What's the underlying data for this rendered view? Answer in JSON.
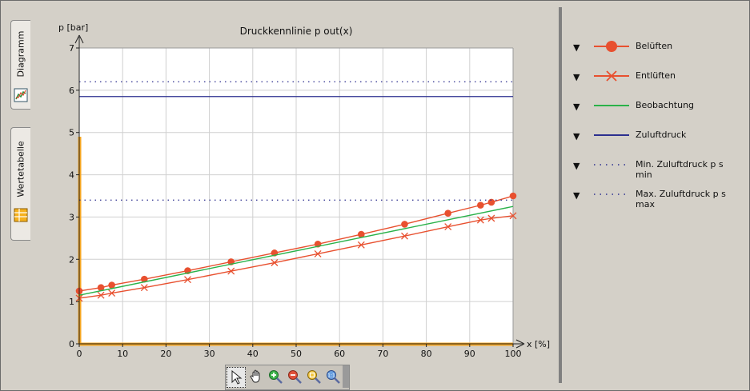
{
  "tabs": [
    {
      "label": "Diagramm",
      "icon": "chart-icon"
    },
    {
      "label": "Wertetabelle",
      "icon": "table-icon"
    }
  ],
  "legend": [
    {
      "label": "Belüften",
      "style": "line-dot",
      "color": "#e8502f"
    },
    {
      "label": "Entlüften",
      "style": "line-x",
      "color": "#e8502f"
    },
    {
      "label": "Beobachtung",
      "style": "line",
      "color": "#2ab24a"
    },
    {
      "label": "Zuluftdruck",
      "style": "line",
      "color": "#2c2f8f"
    },
    {
      "label": "Min. Zuluftdruck p s min",
      "style": "dotted",
      "color": "#2c2f8f"
    },
    {
      "label": "Max. Zuluftdruck p s max",
      "style": "dotted",
      "color": "#2c2f8f"
    }
  ],
  "toolbar": [
    {
      "name": "select-tool",
      "icon": "cursor-icon"
    },
    {
      "name": "pan-tool",
      "icon": "hand-icon"
    },
    {
      "name": "zoom-in-tool",
      "icon": "zoom-in-icon"
    },
    {
      "name": "zoom-out-tool",
      "icon": "zoom-out-icon"
    },
    {
      "name": "zoom-fit-tool",
      "icon": "zoom-fit-icon"
    },
    {
      "name": "zoom-1to1-tool",
      "icon": "zoom-1to1-icon"
    }
  ],
  "chart_data": {
    "type": "line",
    "title": "Druckkennlinie p out(x)",
    "xlabel": "x  [%]",
    "ylabel": "p  [bar]",
    "xlim": [
      0,
      100
    ],
    "ylim": [
      0,
      7
    ],
    "xticks": [
      0,
      10,
      20,
      30,
      40,
      50,
      60,
      70,
      80,
      90,
      100
    ],
    "yticks": [
      0,
      1,
      2,
      3,
      4,
      5,
      6,
      7
    ],
    "grid": true,
    "legend_position": "right",
    "series": [
      {
        "name": "Belüften",
        "kind": "line-dot",
        "color": "#e8502f",
        "x": [
          0,
          5,
          7.5,
          15,
          25,
          35,
          45,
          55,
          65,
          75,
          85,
          92.5,
          95,
          100
        ],
        "y": [
          1.25,
          1.33,
          1.39,
          1.53,
          1.73,
          1.94,
          2.15,
          2.36,
          2.59,
          2.83,
          3.09,
          3.28,
          3.35,
          3.5
        ]
      },
      {
        "name": "Entlüften",
        "kind": "line-x",
        "color": "#e8502f",
        "x": [
          0,
          5,
          7.5,
          15,
          25,
          35,
          45,
          55,
          65,
          75,
          85,
          92.5,
          95,
          100
        ],
        "y": [
          1.08,
          1.15,
          1.2,
          1.33,
          1.52,
          1.72,
          1.92,
          2.13,
          2.34,
          2.55,
          2.77,
          2.93,
          2.97,
          3.03
        ]
      },
      {
        "name": "Beobachtung",
        "kind": "line",
        "color": "#2ab24a",
        "x": [
          0,
          100
        ],
        "y": [
          1.15,
          3.25
        ]
      },
      {
        "name": "Zuluftdruck",
        "kind": "hline",
        "color": "#2c2f8f",
        "y": 5.85
      },
      {
        "name": "Min. Zuluftdruck p s min",
        "kind": "hline-dotted",
        "color": "#2c2f8f",
        "y": 3.4
      },
      {
        "name": "Max. Zuluftdruck p s max",
        "kind": "hline-dotted",
        "color": "#2c2f8f",
        "y": 6.2
      }
    ],
    "limit_markers": {
      "color": "#f5a623",
      "x_range": [
        0,
        100
      ],
      "y_range": [
        0,
        4.9
      ]
    }
  }
}
